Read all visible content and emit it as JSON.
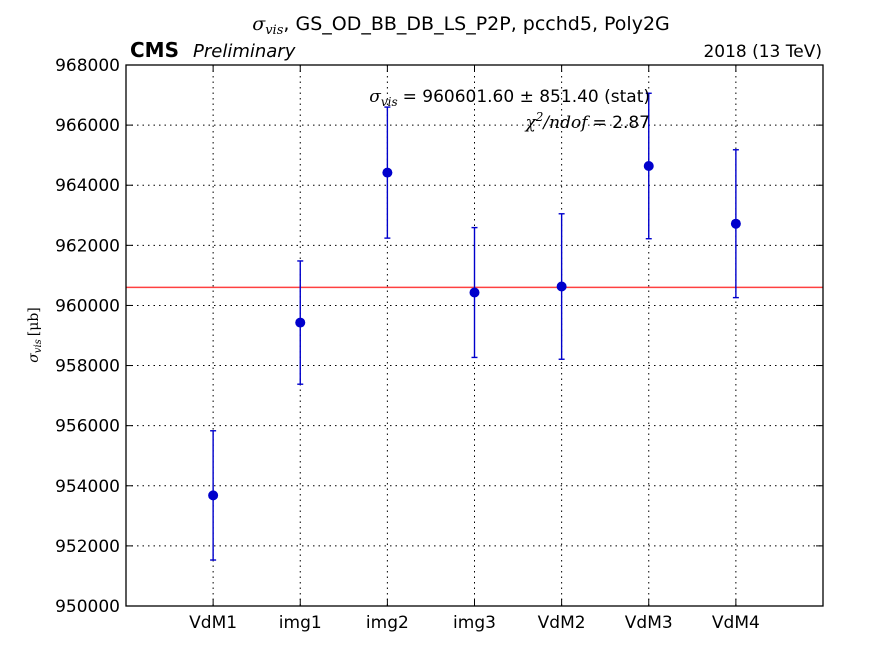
{
  "title": {
    "symbol": "σ",
    "symbol_sub": "vis",
    "rest": ", GS_OD_BB_DB_LS_P2P, pcchd5, Poly2G"
  },
  "experiment_label": "CMS",
  "status_label": "Preliminary",
  "energy_label": "2018 (13 TeV)",
  "ylabel": {
    "symbol": "σ",
    "symbol_sub": "vis",
    "unit": "[μb]"
  },
  "annotations": {
    "sigma_symbol": "σ",
    "sigma_sub": "vis",
    "sigma_value": "= 960601.60 ± 851.40 (stat)",
    "chi2_symbol": "χ",
    "chi2_exp": "2",
    "chi2_rest": "/ndof",
    "chi2_value": "= 2.87"
  },
  "colors": {
    "points": "#0000cc",
    "fit_line": "#ff4040",
    "grid": "#000000"
  },
  "chart_data": {
    "type": "scatter",
    "categories": [
      "VdM1",
      "img1",
      "img2",
      "img3",
      "VdM2",
      "VdM3",
      "VdM4"
    ],
    "values": [
      953680,
      959430,
      964420,
      960430,
      960630,
      964640,
      962720
    ],
    "errors": [
      2150,
      2050,
      2180,
      2160,
      2420,
      2420,
      2460
    ],
    "y_ticks": [
      950000,
      952000,
      954000,
      956000,
      958000,
      960000,
      962000,
      964000,
      966000,
      968000
    ],
    "y_tick_labels": [
      "950000",
      "952000",
      "954000",
      "956000",
      "958000",
      "960000",
      "962000",
      "964000",
      "966000",
      "968000"
    ],
    "ylim": [
      950000,
      968000
    ],
    "fit_value": 960601.6,
    "grid": true,
    "grid_style": "dotted"
  }
}
